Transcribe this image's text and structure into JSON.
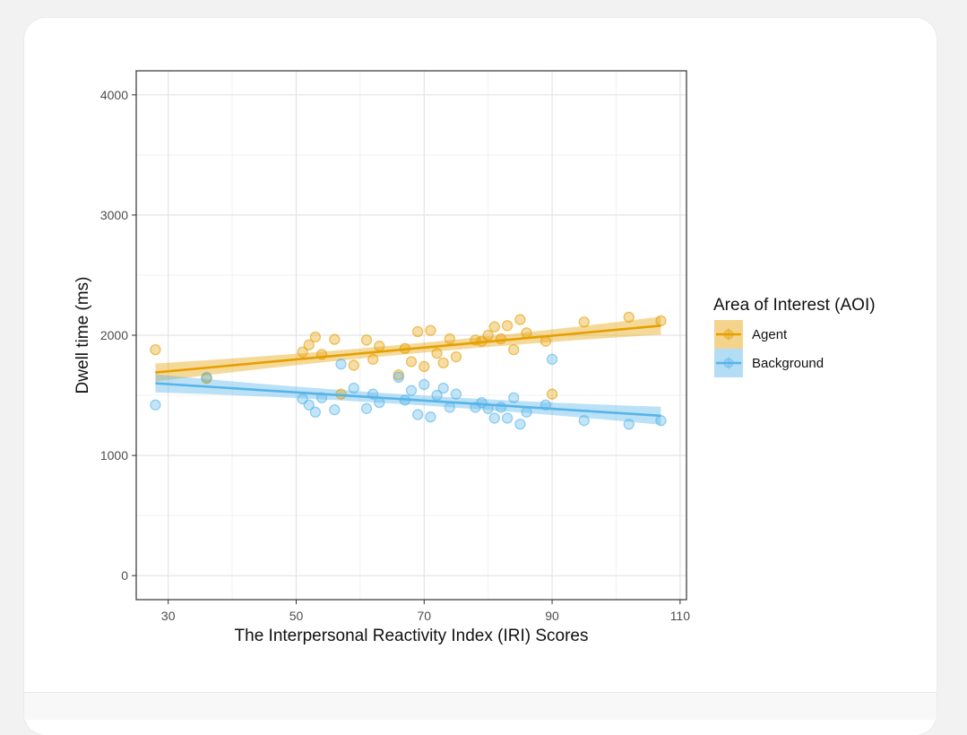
{
  "chart_data": {
    "type": "scatter",
    "title": "",
    "xlabel": "The Interpersonal Reactivity Index (IRI) Scores",
    "ylabel": "Dwell time (ms)",
    "xlim": [
      25,
      111
    ],
    "ylim": [
      -200,
      4200
    ],
    "xticks": [
      30,
      50,
      70,
      90,
      110
    ],
    "yticks": [
      0,
      1000,
      2000,
      3000,
      4000
    ],
    "grid": true,
    "legend": {
      "title": "Area of Interest (AOI)",
      "placement": "right"
    },
    "series": [
      {
        "name": "Agent",
        "color": "#E69F00",
        "fit": {
          "x": [
            28,
            107
          ],
          "y": [
            1690,
            2080
          ],
          "band": 75
        },
        "points": [
          [
            28,
            1880
          ],
          [
            36,
            1640
          ],
          [
            51,
            1860
          ],
          [
            52,
            1920
          ],
          [
            53,
            1985
          ],
          [
            54,
            1840
          ],
          [
            56,
            1965
          ],
          [
            57,
            1510
          ],
          [
            59,
            1750
          ],
          [
            61,
            1960
          ],
          [
            62,
            1800
          ],
          [
            63,
            1910
          ],
          [
            66,
            1670
          ],
          [
            67,
            1890
          ],
          [
            68,
            1780
          ],
          [
            69,
            2030
          ],
          [
            70,
            1740
          ],
          [
            71,
            2040
          ],
          [
            72,
            1850
          ],
          [
            73,
            1770
          ],
          [
            74,
            1970
          ],
          [
            75,
            1820
          ],
          [
            78,
            1960
          ],
          [
            79,
            1950
          ],
          [
            80,
            2000
          ],
          [
            81,
            2070
          ],
          [
            82,
            1970
          ],
          [
            83,
            2080
          ],
          [
            84,
            1880
          ],
          [
            85,
            2130
          ],
          [
            86,
            2020
          ],
          [
            89,
            1950
          ],
          [
            90,
            1510
          ],
          [
            95,
            2110
          ],
          [
            102,
            2150
          ],
          [
            107,
            2120
          ]
        ]
      },
      {
        "name": "Background",
        "color": "#56B4E9",
        "fit": {
          "x": [
            28,
            107
          ],
          "y": [
            1600,
            1330
          ],
          "band": 75
        },
        "points": [
          [
            28,
            1420
          ],
          [
            36,
            1650
          ],
          [
            51,
            1470
          ],
          [
            52,
            1420
          ],
          [
            53,
            1360
          ],
          [
            54,
            1480
          ],
          [
            56,
            1380
          ],
          [
            57,
            1760
          ],
          [
            59,
            1560
          ],
          [
            61,
            1390
          ],
          [
            62,
            1510
          ],
          [
            63,
            1440
          ],
          [
            66,
            1650
          ],
          [
            67,
            1460
          ],
          [
            68,
            1540
          ],
          [
            69,
            1340
          ],
          [
            70,
            1590
          ],
          [
            71,
            1320
          ],
          [
            72,
            1500
          ],
          [
            73,
            1560
          ],
          [
            74,
            1400
          ],
          [
            75,
            1510
          ],
          [
            78,
            1400
          ],
          [
            79,
            1440
          ],
          [
            80,
            1390
          ],
          [
            81,
            1310
          ],
          [
            82,
            1400
          ],
          [
            83,
            1310
          ],
          [
            84,
            1480
          ],
          [
            85,
            1260
          ],
          [
            86,
            1360
          ],
          [
            89,
            1420
          ],
          [
            90,
            1800
          ],
          [
            95,
            1290
          ],
          [
            102,
            1260
          ],
          [
            107,
            1290
          ]
        ]
      }
    ]
  }
}
